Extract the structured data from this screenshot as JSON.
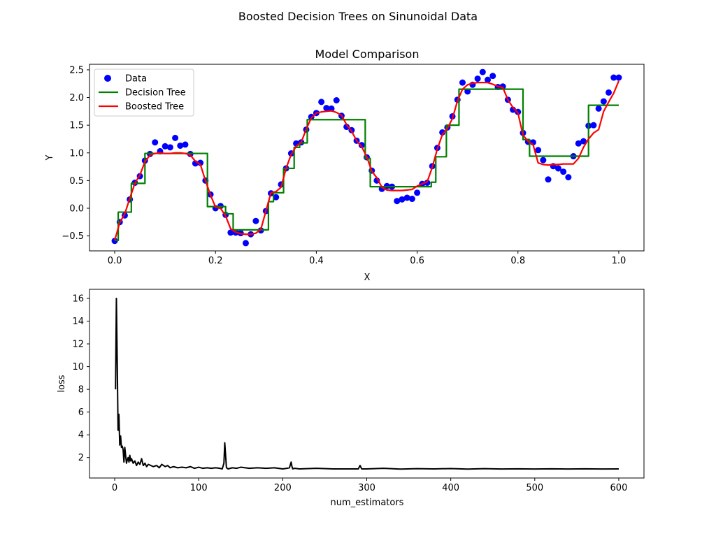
{
  "figure": {
    "suptitle": "Boosted Decision Trees on Sinunoidal Data"
  },
  "chart_data": [
    {
      "type": "scatter+line",
      "title": "Model Comparison",
      "xlabel": "X",
      "ylabel": "Y",
      "xlim": [
        -0.05,
        1.05
      ],
      "ylim": [
        -0.77,
        2.6
      ],
      "xticks": [
        0.0,
        0.2,
        0.4,
        0.6,
        0.8,
        1.0
      ],
      "xtick_labels": [
        "0.0",
        "0.2",
        "0.4",
        "0.6",
        "0.8",
        "1.0"
      ],
      "yticks": [
        -0.5,
        0.0,
        0.5,
        1.0,
        1.5,
        2.0,
        2.5
      ],
      "ytick_labels": [
        "−0.5",
        "0.0",
        "0.5",
        "1.0",
        "1.5",
        "2.0",
        "2.5"
      ],
      "legend_position": "upper-left",
      "legend": [
        {
          "label": "Data",
          "kind": "marker",
          "color": "#0000ff"
        },
        {
          "label": "Decision Tree",
          "kind": "line",
          "color": "#008000"
        },
        {
          "label": "Boosted Tree",
          "kind": "line",
          "color": "#ff0000"
        }
      ],
      "series": [
        {
          "name": "Data",
          "kind": "scatter",
          "color": "#0000ff",
          "x": [
            0.0,
            0.01,
            0.02,
            0.03,
            0.04,
            0.05,
            0.06,
            0.07,
            0.08,
            0.09,
            0.1,
            0.11,
            0.12,
            0.13,
            0.14,
            0.15,
            0.16,
            0.17,
            0.18,
            0.19,
            0.2,
            0.21,
            0.22,
            0.23,
            0.24,
            0.25,
            0.26,
            0.27,
            0.28,
            0.29,
            0.3,
            0.31,
            0.32,
            0.33,
            0.34,
            0.35,
            0.36,
            0.37,
            0.38,
            0.39,
            0.4,
            0.41,
            0.42,
            0.43,
            0.44,
            0.45,
            0.46,
            0.47,
            0.48,
            0.49,
            0.5,
            0.51,
            0.52,
            0.53,
            0.54,
            0.55,
            0.56,
            0.57,
            0.58,
            0.59,
            0.6,
            0.61,
            0.62,
            0.63,
            0.64,
            0.65,
            0.66,
            0.67,
            0.68,
            0.69,
            0.7,
            0.71,
            0.72,
            0.73,
            0.74,
            0.75,
            0.76,
            0.77,
            0.78,
            0.79,
            0.8,
            0.81,
            0.82,
            0.83,
            0.84,
            0.85,
            0.86,
            0.87,
            0.88,
            0.89,
            0.9,
            0.91,
            0.92,
            0.93,
            0.94,
            0.95,
            0.96,
            0.97,
            0.98,
            0.99,
            1.0
          ],
          "y": [
            -0.59,
            -0.25,
            -0.13,
            0.16,
            0.46,
            0.58,
            0.86,
            0.98,
            1.19,
            1.03,
            1.12,
            1.1,
            1.27,
            1.13,
            1.15,
            0.98,
            0.81,
            0.82,
            0.5,
            0.25,
            0.0,
            0.04,
            -0.12,
            -0.44,
            -0.44,
            -0.45,
            -0.63,
            -0.47,
            -0.23,
            -0.4,
            -0.05,
            0.27,
            0.2,
            0.43,
            0.72,
            0.99,
            1.17,
            1.19,
            1.42,
            1.65,
            1.72,
            1.92,
            1.81,
            1.8,
            1.95,
            1.67,
            1.47,
            1.41,
            1.22,
            1.14,
            0.92,
            0.68,
            0.5,
            0.35,
            0.4,
            0.39,
            0.13,
            0.16,
            0.19,
            0.17,
            0.28,
            0.44,
            0.46,
            0.76,
            1.09,
            1.37,
            1.46,
            1.66,
            1.96,
            2.27,
            2.11,
            2.23,
            2.34,
            2.46,
            2.32,
            2.39,
            2.19,
            2.2,
            1.96,
            1.78,
            1.74,
            1.36,
            1.2,
            1.19,
            1.05,
            0.87,
            0.52,
            0.76,
            0.72,
            0.66,
            0.56,
            0.94,
            1.17,
            1.21,
            1.49,
            1.5,
            1.8,
            1.93,
            2.09,
            2.36,
            2.36
          ]
        },
        {
          "name": "Decision Tree",
          "kind": "step-line",
          "color": "#008000",
          "x": [
            0.0,
            0.007,
            0.007,
            0.033,
            0.033,
            0.06,
            0.06,
            0.184,
            0.184,
            0.22,
            0.22,
            0.235,
            0.235,
            0.305,
            0.305,
            0.315,
            0.315,
            0.335,
            0.335,
            0.356,
            0.356,
            0.367,
            0.367,
            0.382,
            0.382,
            0.497,
            0.497,
            0.507,
            0.507,
            0.628,
            0.628,
            0.637,
            0.637,
            0.658,
            0.658,
            0.683,
            0.683,
            0.81,
            0.81,
            0.823,
            0.823,
            0.94,
            0.94,
            1.0
          ],
          "y": [
            -0.58,
            -0.58,
            -0.07,
            -0.07,
            0.45,
            0.45,
            0.99,
            0.99,
            0.03,
            0.03,
            -0.1,
            -0.1,
            -0.39,
            -0.39,
            0.12,
            0.12,
            0.28,
            0.28,
            0.72,
            0.72,
            1.1,
            1.1,
            1.18,
            1.18,
            1.6,
            1.6,
            0.9,
            0.9,
            0.39,
            0.39,
            0.47,
            0.47,
            0.93,
            0.93,
            1.5,
            1.5,
            2.15,
            2.15,
            1.24,
            1.24,
            0.94,
            0.94,
            1.86,
            1.86
          ]
        },
        {
          "name": "Boosted Tree",
          "kind": "line",
          "color": "#ff0000",
          "x": [
            0.0,
            0.01,
            0.02,
            0.03,
            0.04,
            0.05,
            0.06,
            0.07,
            0.08,
            0.09,
            0.1,
            0.11,
            0.12,
            0.13,
            0.14,
            0.15,
            0.16,
            0.17,
            0.18,
            0.19,
            0.2,
            0.21,
            0.22,
            0.23,
            0.24,
            0.25,
            0.26,
            0.27,
            0.28,
            0.29,
            0.3,
            0.31,
            0.32,
            0.33,
            0.34,
            0.35,
            0.36,
            0.37,
            0.38,
            0.39,
            0.4,
            0.41,
            0.42,
            0.43,
            0.44,
            0.45,
            0.46,
            0.47,
            0.48,
            0.49,
            0.5,
            0.51,
            0.52,
            0.53,
            0.54,
            0.55,
            0.56,
            0.57,
            0.58,
            0.59,
            0.6,
            0.61,
            0.62,
            0.63,
            0.64,
            0.65,
            0.66,
            0.67,
            0.68,
            0.69,
            0.7,
            0.71,
            0.72,
            0.73,
            0.74,
            0.75,
            0.76,
            0.77,
            0.78,
            0.79,
            0.8,
            0.81,
            0.82,
            0.83,
            0.84,
            0.85,
            0.86,
            0.87,
            0.88,
            0.89,
            0.9,
            0.91,
            0.92,
            0.93,
            0.94,
            0.95,
            0.96,
            0.97,
            0.98,
            0.99,
            1.0
          ],
          "y": [
            -0.58,
            -0.26,
            -0.1,
            0.18,
            0.45,
            0.6,
            0.84,
            0.96,
            0.99,
            1.0,
            0.99,
            0.99,
            1.0,
            1.0,
            0.99,
            0.96,
            0.85,
            0.79,
            0.5,
            0.24,
            0.02,
            0.0,
            -0.14,
            -0.37,
            -0.43,
            -0.46,
            -0.47,
            -0.47,
            -0.45,
            -0.38,
            -0.05,
            0.28,
            0.3,
            0.38,
            0.72,
            0.97,
            1.12,
            1.19,
            1.43,
            1.63,
            1.72,
            1.74,
            1.75,
            1.76,
            1.73,
            1.68,
            1.51,
            1.39,
            1.22,
            1.11,
            0.93,
            0.67,
            0.55,
            0.38,
            0.33,
            0.32,
            0.32,
            0.32,
            0.33,
            0.34,
            0.4,
            0.44,
            0.48,
            0.74,
            1.07,
            1.33,
            1.44,
            1.62,
            1.94,
            2.15,
            2.23,
            2.26,
            2.27,
            2.27,
            2.27,
            2.24,
            2.2,
            2.18,
            1.96,
            1.82,
            1.72,
            1.32,
            1.21,
            1.15,
            0.82,
            0.79,
            0.78,
            0.79,
            0.79,
            0.8,
            0.8,
            0.8,
            0.9,
            1.1,
            1.25,
            1.36,
            1.42,
            1.75,
            1.92,
            2.08,
            2.3
          ]
        }
      ]
    },
    {
      "type": "line",
      "title": "",
      "xlabel": "num_estimators",
      "ylabel": "loss",
      "xlim": [
        -30,
        630
      ],
      "ylim": [
        0.2,
        16.8
      ],
      "xticks": [
        0,
        100,
        200,
        300,
        400,
        500,
        600
      ],
      "xtick_labels": [
        "0",
        "100",
        "200",
        "300",
        "400",
        "500",
        "600"
      ],
      "yticks": [
        2,
        4,
        6,
        8,
        10,
        12,
        14,
        16
      ],
      "ytick_labels": [
        "2",
        "4",
        "6",
        "8",
        "10",
        "12",
        "14",
        "16"
      ],
      "series": [
        {
          "name": "",
          "kind": "line",
          "color": "#000000",
          "x": [
            1,
            2,
            3,
            4,
            5,
            6,
            7,
            8,
            9,
            10,
            11,
            12,
            13,
            14,
            15,
            16,
            17,
            18,
            19,
            20,
            22,
            24,
            26,
            28,
            30,
            32,
            34,
            36,
            38,
            40,
            43,
            46,
            50,
            53,
            56,
            60,
            63,
            66,
            70,
            75,
            80,
            85,
            90,
            95,
            100,
            105,
            110,
            115,
            120,
            125,
            128,
            130,
            131,
            132,
            133,
            135,
            140,
            145,
            150,
            160,
            170,
            180,
            190,
            200,
            205,
            208,
            210,
            211,
            212,
            214,
            220,
            240,
            260,
            280,
            290,
            292,
            294,
            300,
            320,
            340,
            360,
            380,
            400,
            420,
            440,
            460,
            480,
            500,
            520,
            540,
            560,
            580,
            600
          ],
          "y": [
            8.0,
            16.0,
            10.5,
            4.4,
            5.8,
            3.1,
            3.9,
            2.9,
            3.0,
            2.7,
            1.6,
            2.9,
            2.2,
            1.5,
            1.8,
            2.0,
            1.6,
            2.2,
            1.7,
            1.9,
            1.5,
            1.7,
            1.3,
            1.6,
            1.4,
            1.9,
            1.3,
            1.5,
            1.2,
            1.4,
            1.3,
            1.2,
            1.3,
            1.1,
            1.4,
            1.2,
            1.3,
            1.1,
            1.2,
            1.1,
            1.15,
            1.1,
            1.2,
            1.05,
            1.15,
            1.05,
            1.1,
            1.05,
            1.1,
            1.05,
            1.0,
            1.5,
            3.3,
            2.2,
            1.1,
            1.0,
            1.1,
            1.05,
            1.15,
            1.05,
            1.1,
            1.05,
            1.1,
            1.0,
            1.05,
            1.1,
            1.6,
            1.2,
            1.0,
            1.05,
            1.0,
            1.05,
            1.0,
            1.0,
            1.0,
            1.3,
            1.0,
            1.0,
            1.05,
            0.98,
            1.02,
            1.0,
            1.03,
            0.98,
            1.02,
            0.99,
            1.01,
            0.99,
            1.01,
            0.99,
            1.01,
            0.99,
            1.0
          ]
        }
      ]
    }
  ]
}
